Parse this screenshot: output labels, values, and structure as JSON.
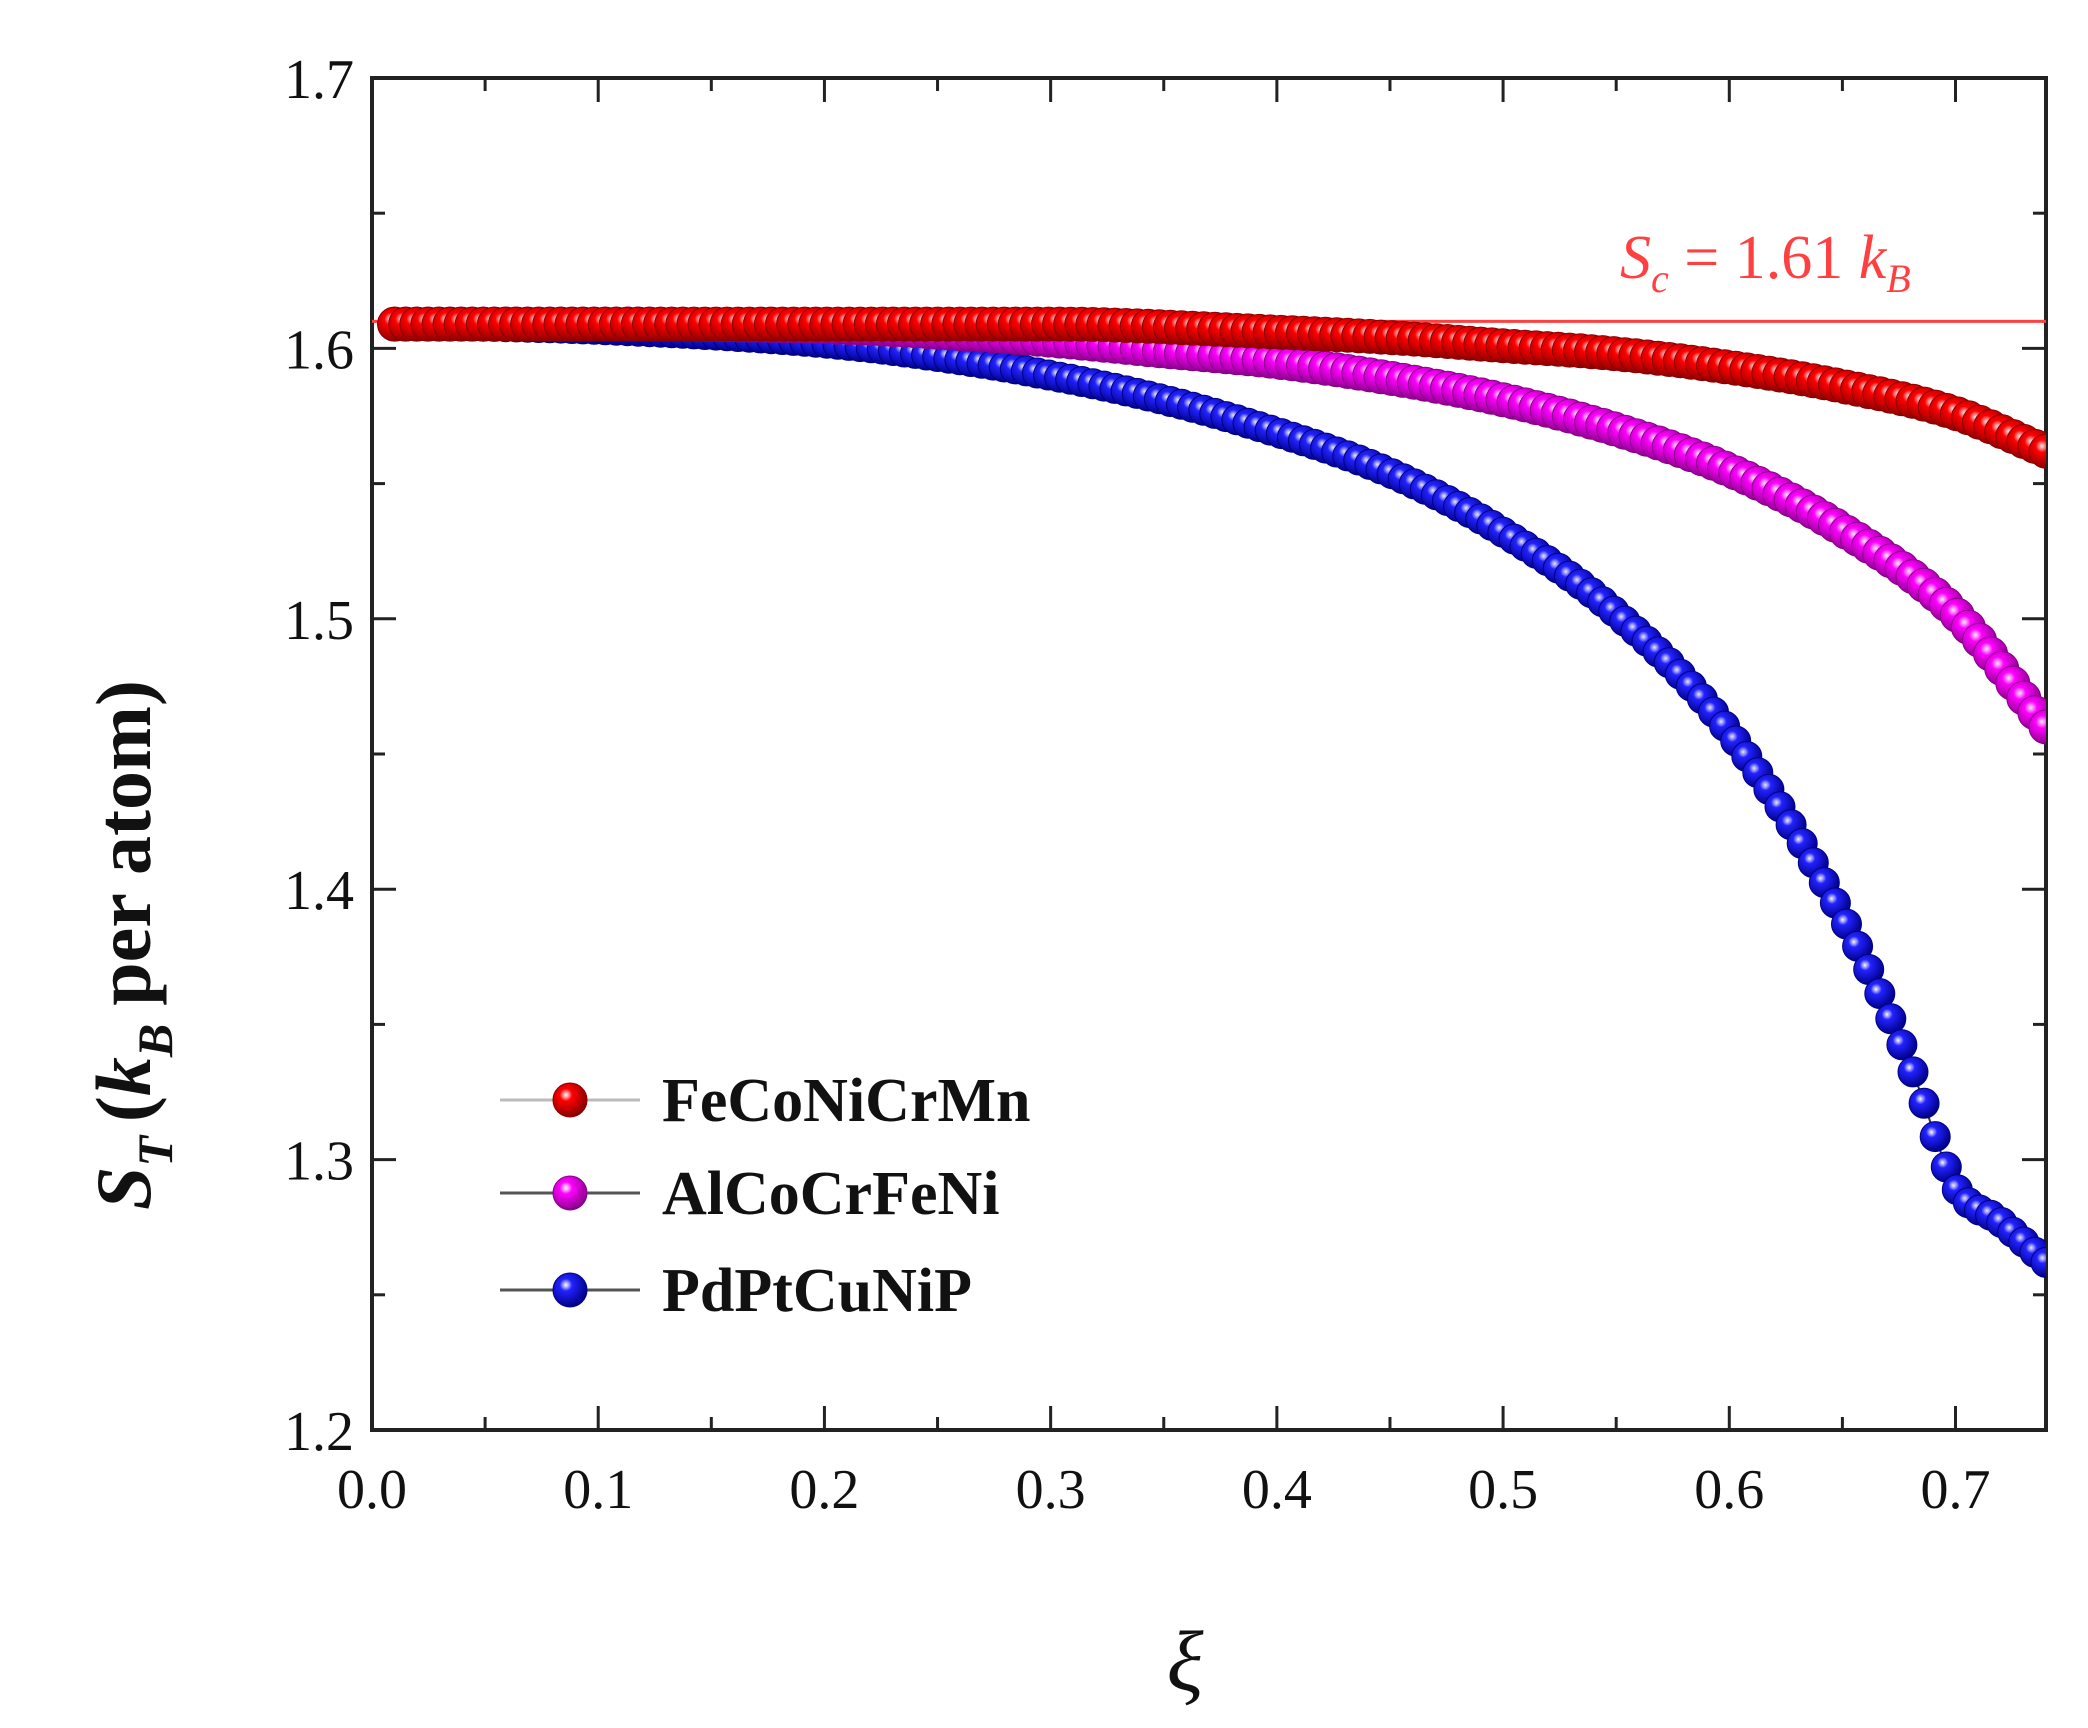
{
  "chart_data": {
    "type": "scatter",
    "title": "",
    "xlabel": "ξ",
    "ylabel": {
      "main": "S",
      "main_sub": "T",
      "open": "(",
      "k": "k",
      "k_sub": "B",
      "rest": "per atom)"
    },
    "xlim": [
      0.0,
      0.74
    ],
    "ylim": [
      1.2,
      1.7
    ],
    "xticks": [
      0.0,
      0.1,
      0.2,
      0.3,
      0.4,
      0.5,
      0.6,
      0.7
    ],
    "xtick_labels": [
      "0.0",
      "0.1",
      "0.2",
      "0.3",
      "0.4",
      "0.5",
      "0.6",
      "0.7"
    ],
    "yticks": [
      1.2,
      1.3,
      1.4,
      1.5,
      1.6,
      1.7
    ],
    "ytick_labels": [
      "1.2",
      "1.3",
      "1.4",
      "1.5",
      "1.6",
      "1.7"
    ],
    "reference_line": {
      "y": 1.61,
      "color": "#ff4040",
      "label": {
        "s": "S",
        "s_sub": "c",
        "eq": " = 1.61 ",
        "k": "k",
        "k_sub": "B"
      }
    },
    "legend_position": "bottom-left",
    "series": [
      {
        "name": "FeCoNiCrMn",
        "color": "#ff0000",
        "dark": "#8a0000",
        "x": [
          0.0,
          0.1,
          0.2,
          0.3,
          0.4,
          0.45,
          0.5,
          0.55,
          0.6,
          0.65,
          0.7,
          0.74
        ],
        "values": [
          1.609,
          1.609,
          1.609,
          1.609,
          1.606,
          1.604,
          1.601,
          1.598,
          1.593,
          1.586,
          1.576,
          1.562
        ]
      },
      {
        "name": "AlCoCrFeNi",
        "color": "#ff00ff",
        "dark": "#8a008a",
        "x": [
          0.0,
          0.1,
          0.2,
          0.25,
          0.3,
          0.35,
          0.4,
          0.45,
          0.5,
          0.55,
          0.6,
          0.65,
          0.7,
          0.74
        ],
        "values": [
          1.609,
          1.609,
          1.608,
          1.606,
          1.603,
          1.599,
          1.595,
          1.589,
          1.581,
          1.57,
          1.555,
          1.533,
          1.502,
          1.46
        ]
      },
      {
        "name": "PdPtCuNiP",
        "color": "#2222ff",
        "dark": "#000088",
        "x": [
          0.0,
          0.1,
          0.2,
          0.25,
          0.3,
          0.35,
          0.4,
          0.45,
          0.5,
          0.55,
          0.6,
          0.65,
          0.68,
          0.7,
          0.72,
          0.74
        ],
        "values": [
          1.609,
          1.607,
          1.602,
          1.597,
          1.59,
          1.581,
          1.569,
          1.554,
          1.532,
          1.502,
          1.458,
          1.39,
          1.335,
          1.29,
          1.277,
          1.262
        ]
      }
    ]
  }
}
